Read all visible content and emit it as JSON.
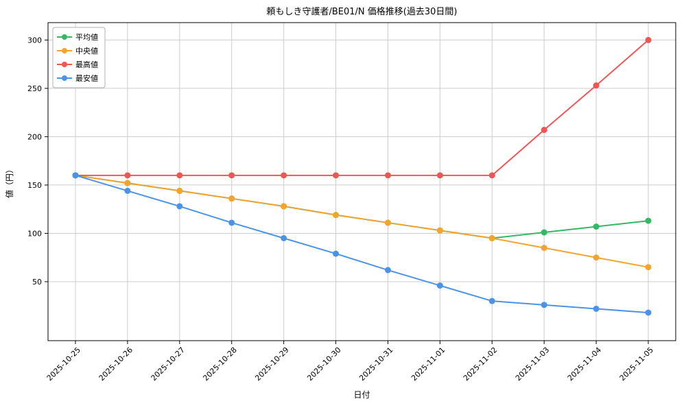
{
  "chart_data": {
    "type": "line",
    "title": "頼もしき守護者/BE01/N 価格推移(過去30日間)",
    "xlabel": "日付",
    "ylabel": "値（円）",
    "x": [
      "2025-10-25",
      "2025-10-26",
      "2025-10-27",
      "2025-10-28",
      "2025-10-29",
      "2025-10-30",
      "2025-10-31",
      "2025-11-01",
      "2025-11-02",
      "2025-11-03",
      "2025-11-04",
      "2025-11-05"
    ],
    "series": [
      {
        "key": "average",
        "name": "平均値",
        "color": "#33b864",
        "values": [
          160,
          152,
          144,
          136,
          128,
          119,
          111,
          103,
          95,
          101,
          107,
          113
        ]
      },
      {
        "key": "median",
        "name": "中央値",
        "color": "#f2a431",
        "values": [
          160,
          152,
          144,
          136,
          128,
          119,
          111,
          103,
          95,
          85,
          75,
          65
        ]
      },
      {
        "key": "max",
        "name": "最高値",
        "color": "#f45454",
        "values": [
          160,
          160,
          160,
          160,
          160,
          160,
          160,
          160,
          160,
          207,
          253,
          300
        ]
      },
      {
        "key": "min",
        "name": "最安値",
        "color": "#4b93e6",
        "values": [
          160,
          144,
          128,
          111,
          95,
          79,
          62,
          46,
          30,
          26,
          22,
          18
        ]
      }
    ],
    "yticks": [
      50,
      100,
      150,
      200,
      250,
      300
    ],
    "ylim": [
      -11,
      318
    ],
    "grid": true,
    "grid_color": "#cccccc",
    "legend_position": "upper left",
    "background": "#ffffff",
    "x_tick_rotation": 45
  }
}
